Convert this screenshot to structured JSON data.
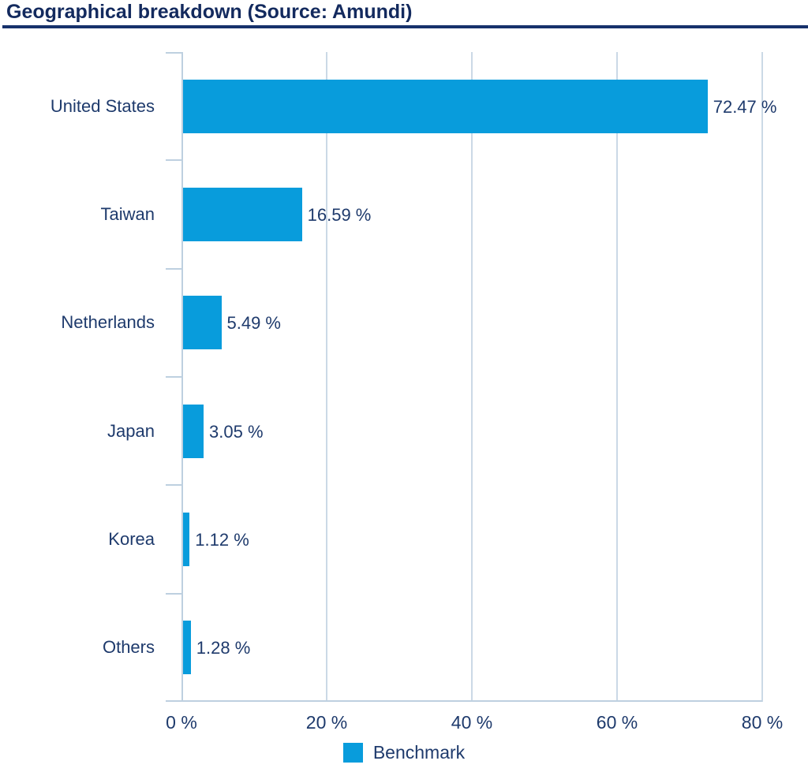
{
  "header": {
    "title": "Geographical breakdown (Source: Amundi)"
  },
  "chart_data": {
    "type": "bar",
    "orientation": "horizontal",
    "title": "Geographical breakdown (Source: Amundi)",
    "categories": [
      "United States",
      "Taiwan",
      "Netherlands",
      "Japan",
      "Korea",
      "Others"
    ],
    "series": [
      {
        "name": "Benchmark",
        "values": [
          72.47,
          16.59,
          5.49,
          3.05,
          1.12,
          1.28
        ]
      }
    ],
    "value_labels": [
      "72.47 %",
      "16.59 %",
      "5.49 %",
      "3.05 %",
      "1.12 %",
      "1.28 %"
    ],
    "x_tick_labels": [
      "0 %",
      "20 %",
      "40 %",
      "60 %",
      "80 %"
    ],
    "x_tick_values": [
      0,
      20,
      40,
      60,
      80
    ],
    "xlim": [
      0,
      80
    ],
    "grid": true,
    "legend": {
      "position": "bottom",
      "label": "Benchmark",
      "color": "#089CDC"
    },
    "colors": {
      "bar": "#089CDC",
      "text": "#1E3A6C",
      "title": "#132A5E",
      "rule": "#16316B",
      "grid": "#CBD9E6",
      "axis": "#BED0E0",
      "background": "#FFFFFF"
    }
  }
}
